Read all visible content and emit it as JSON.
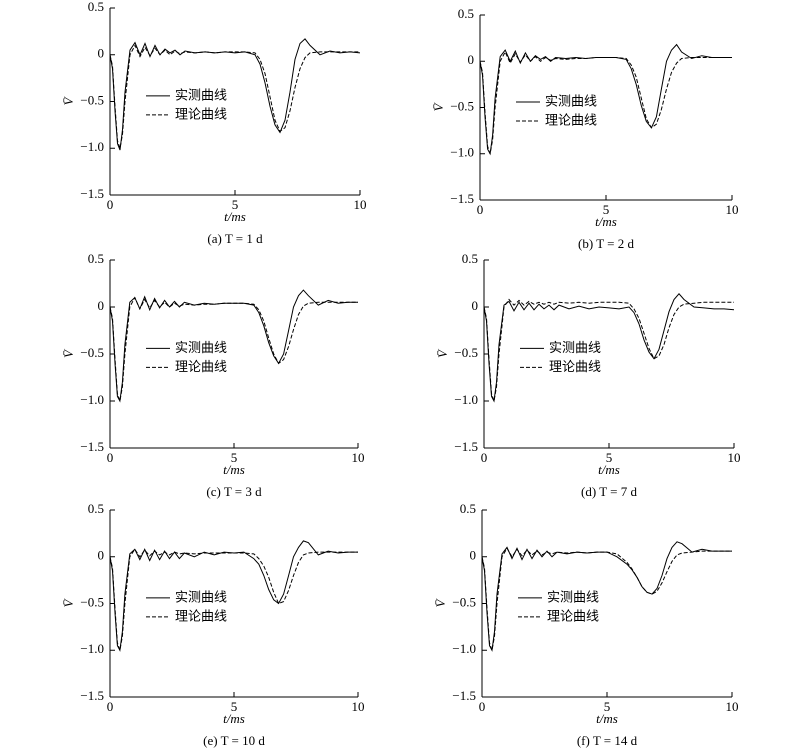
{
  "chart_data": [
    {
      "type": "line",
      "caption": "(a) T = 1 d",
      "x_label": "t/ms",
      "y_label": "V̄",
      "legend": "left",
      "xlim": [
        0,
        10
      ],
      "ylim": [
        -1.5,
        0.5
      ],
      "xticks": [
        0,
        5,
        10
      ],
      "yticks": [
        0.5,
        0,
        {
          "value": -0.5,
          "label": "−0.5"
        },
        {
          "value": -1,
          "label": "−1.0"
        },
        {
          "value": -1.5,
          "label": "−1.5"
        }
      ],
      "x": [
        0,
        0.1,
        0.2,
        0.3,
        0.4,
        0.5,
        0.6,
        0.8,
        1.0,
        1.2,
        1.4,
        1.6,
        1.8,
        2.0,
        2.2,
        2.4,
        2.6,
        2.8,
        3.0,
        3.4,
        3.8,
        4.2,
        4.6,
        5.0,
        5.4,
        5.8,
        6.0,
        6.2,
        6.4,
        6.6,
        6.8,
        7.0,
        7.2,
        7.4,
        7.6,
        7.8,
        8.0,
        8.4,
        8.8,
        9.2,
        9.6,
        10
      ],
      "series": [
        {
          "name": "实测曲线",
          "color": "#000000",
          "style": "solid",
          "values": [
            0,
            -0.15,
            -0.6,
            -0.95,
            -1.02,
            -0.8,
            -0.4,
            0.05,
            0.13,
            0.0,
            0.12,
            -0.02,
            0.1,
            0.0,
            0.06,
            0.02,
            0.05,
            0.0,
            0.04,
            0.02,
            0.03,
            0.02,
            0.03,
            0.02,
            0.03,
            0.0,
            -0.1,
            -0.3,
            -0.55,
            -0.75,
            -0.83,
            -0.7,
            -0.4,
            -0.05,
            0.12,
            0.17,
            0.1,
            0.0,
            0.04,
            0.02,
            0.03,
            0.02
          ]
        },
        {
          "name": "理论曲线",
          "color": "#000000",
          "style": "dashed",
          "values": [
            0,
            -0.12,
            -0.55,
            -0.92,
            -1.0,
            -0.85,
            -0.5,
            0.0,
            0.1,
            -0.02,
            0.08,
            -0.01,
            0.07,
            0.0,
            0.05,
            0.0,
            0.04,
            0.01,
            0.03,
            0.02,
            0.03,
            0.02,
            0.03,
            0.03,
            0.03,
            0.02,
            -0.05,
            -0.2,
            -0.45,
            -0.7,
            -0.82,
            -0.78,
            -0.6,
            -0.35,
            -0.15,
            -0.03,
            0.02,
            0.03,
            0.03,
            0.03,
            0.03,
            0.03
          ]
        }
      ]
    },
    {
      "type": "line",
      "caption": "(b) T = 2 d",
      "x_label": "t/ms",
      "y_label": "V̄",
      "legend": "left",
      "xlim": [
        0,
        10
      ],
      "ylim": [
        -1.5,
        0.5
      ],
      "xticks": [
        0,
        5,
        10
      ],
      "yticks": [
        0.5,
        0,
        {
          "value": -0.5,
          "label": "−0.5"
        },
        {
          "value": -1,
          "label": "−1.0"
        },
        {
          "value": -1.5,
          "label": "−1.5"
        }
      ],
      "x": [
        0,
        0.1,
        0.2,
        0.3,
        0.4,
        0.5,
        0.6,
        0.8,
        1.0,
        1.2,
        1.4,
        1.6,
        1.8,
        2.0,
        2.2,
        2.4,
        2.6,
        2.8,
        3.0,
        3.4,
        3.8,
        4.2,
        4.6,
        5.0,
        5.4,
        5.8,
        6.0,
        6.2,
        6.4,
        6.6,
        6.8,
        7.0,
        7.2,
        7.4,
        7.6,
        7.8,
        8.0,
        8.4,
        8.8,
        9.2,
        9.6,
        10
      ],
      "series": [
        {
          "name": "实测曲线",
          "color": "#000000",
          "style": "solid",
          "values": [
            0,
            -0.15,
            -0.6,
            -0.95,
            -1.0,
            -0.8,
            -0.4,
            0.05,
            0.12,
            0.0,
            0.11,
            -0.02,
            0.09,
            0.0,
            0.06,
            0.02,
            0.05,
            0.0,
            0.04,
            0.03,
            0.04,
            0.03,
            0.04,
            0.04,
            0.04,
            0.02,
            -0.08,
            -0.25,
            -0.48,
            -0.65,
            -0.72,
            -0.6,
            -0.3,
            0.0,
            0.12,
            0.18,
            0.1,
            0.03,
            0.06,
            0.04,
            0.04,
            0.04
          ]
        },
        {
          "name": "理论曲线",
          "color": "#000000",
          "style": "dashed",
          "values": [
            0,
            -0.12,
            -0.55,
            -0.92,
            -1.0,
            -0.85,
            -0.5,
            0.0,
            0.1,
            -0.02,
            0.08,
            -0.01,
            0.07,
            0.0,
            0.05,
            0.0,
            0.04,
            0.01,
            0.03,
            0.02,
            0.03,
            0.03,
            0.04,
            0.04,
            0.04,
            0.03,
            -0.04,
            -0.17,
            -0.4,
            -0.62,
            -0.72,
            -0.68,
            -0.52,
            -0.3,
            -0.12,
            -0.02,
            0.03,
            0.04,
            0.04,
            0.04,
            0.04,
            0.04
          ]
        }
      ]
    },
    {
      "type": "line",
      "caption": "(c) T = 3 d",
      "x_label": "t/ms",
      "y_label": "V̄",
      "legend": "left",
      "xlim": [
        0,
        10
      ],
      "ylim": [
        -1.5,
        0.5
      ],
      "xticks": [
        0,
        5,
        10
      ],
      "yticks": [
        0.5,
        0,
        {
          "value": -0.5,
          "label": "−0.5"
        },
        {
          "value": -1,
          "label": "−1.0"
        },
        {
          "value": -1.5,
          "label": "−1.5"
        }
      ],
      "x": [
        0,
        0.1,
        0.2,
        0.3,
        0.4,
        0.5,
        0.6,
        0.8,
        1.0,
        1.2,
        1.4,
        1.6,
        1.8,
        2.0,
        2.2,
        2.4,
        2.6,
        2.8,
        3.0,
        3.4,
        3.8,
        4.2,
        4.6,
        5.0,
        5.4,
        5.8,
        6.0,
        6.2,
        6.4,
        6.6,
        6.8,
        7.0,
        7.2,
        7.4,
        7.6,
        7.8,
        8.0,
        8.4,
        8.8,
        9.2,
        9.6,
        10
      ],
      "series": [
        {
          "name": "实测曲线",
          "color": "#000000",
          "style": "solid",
          "values": [
            0,
            -0.15,
            -0.6,
            -0.95,
            -1.0,
            -0.8,
            -0.4,
            0.05,
            0.1,
            -0.02,
            0.11,
            -0.03,
            0.09,
            -0.01,
            0.07,
            0.0,
            0.06,
            0.0,
            0.05,
            0.02,
            0.04,
            0.03,
            0.04,
            0.04,
            0.04,
            0.02,
            -0.06,
            -0.2,
            -0.38,
            -0.52,
            -0.6,
            -0.5,
            -0.25,
            0.0,
            0.12,
            0.18,
            0.12,
            0.02,
            0.07,
            0.04,
            0.05,
            0.05
          ]
        },
        {
          "name": "理论曲线",
          "color": "#000000",
          "style": "dashed",
          "values": [
            0,
            -0.12,
            -0.55,
            -0.92,
            -1.0,
            -0.85,
            -0.5,
            0.0,
            0.1,
            -0.02,
            0.08,
            -0.01,
            0.07,
            0.0,
            0.05,
            0.0,
            0.04,
            0.01,
            0.03,
            0.02,
            0.03,
            0.03,
            0.04,
            0.04,
            0.04,
            0.03,
            -0.03,
            -0.15,
            -0.33,
            -0.5,
            -0.6,
            -0.56,
            -0.42,
            -0.24,
            -0.08,
            0.01,
            0.04,
            0.05,
            0.05,
            0.05,
            0.05,
            0.05
          ]
        }
      ]
    },
    {
      "type": "line",
      "caption": "(d) T = 7 d",
      "x_label": "t/ms",
      "y_label": "V̄",
      "legend": "left",
      "xlim": [
        0,
        10
      ],
      "ylim": [
        -1.5,
        0.5
      ],
      "xticks": [
        0,
        5,
        10
      ],
      "yticks": [
        0.5,
        0,
        {
          "value": -0.5,
          "label": "−0.5"
        },
        {
          "value": -1,
          "label": "−1.0"
        },
        {
          "value": -1.5,
          "label": "−1.5"
        }
      ],
      "x": [
        0,
        0.1,
        0.2,
        0.3,
        0.4,
        0.5,
        0.6,
        0.8,
        1.0,
        1.2,
        1.4,
        1.6,
        1.8,
        2.0,
        2.2,
        2.4,
        2.6,
        2.8,
        3.0,
        3.4,
        3.8,
        4.2,
        4.6,
        5.0,
        5.4,
        5.8,
        6.0,
        6.2,
        6.4,
        6.6,
        6.8,
        7.0,
        7.2,
        7.4,
        7.6,
        7.8,
        8.0,
        8.4,
        8.8,
        9.2,
        9.6,
        10
      ],
      "series": [
        {
          "name": "实测曲线",
          "color": "#000000",
          "style": "solid",
          "values": [
            0,
            -0.15,
            -0.6,
            -0.95,
            -1.0,
            -0.8,
            -0.4,
            0.02,
            0.06,
            -0.04,
            0.05,
            -0.03,
            0.04,
            -0.03,
            0.03,
            -0.02,
            0.02,
            -0.03,
            0.02,
            -0.02,
            0.01,
            -0.02,
            0.0,
            -0.01,
            -0.02,
            0.0,
            -0.06,
            -0.18,
            -0.35,
            -0.48,
            -0.55,
            -0.45,
            -0.25,
            -0.05,
            0.08,
            0.14,
            0.08,
            0.0,
            -0.01,
            -0.02,
            -0.02,
            -0.03
          ]
        },
        {
          "name": "理论曲线",
          "color": "#000000",
          "style": "dashed",
          "values": [
            0,
            -0.12,
            -0.55,
            -0.92,
            -1.0,
            -0.85,
            -0.5,
            0.0,
            0.08,
            0.02,
            0.07,
            0.02,
            0.06,
            0.03,
            0.05,
            0.03,
            0.05,
            0.03,
            0.05,
            0.04,
            0.05,
            0.04,
            0.05,
            0.05,
            0.05,
            0.04,
            -0.02,
            -0.12,
            -0.28,
            -0.44,
            -0.55,
            -0.52,
            -0.4,
            -0.22,
            -0.08,
            0.0,
            0.03,
            0.04,
            0.05,
            0.05,
            0.05,
            0.05
          ]
        }
      ]
    },
    {
      "type": "line",
      "caption": "(e) T = 10 d",
      "x_label": "t/ms",
      "y_label": "V̄",
      "legend": "left",
      "xlim": [
        0,
        10
      ],
      "ylim": [
        -1.5,
        0.5
      ],
      "xticks": [
        0,
        5,
        10
      ],
      "yticks": [
        0.5,
        0,
        {
          "value": -0.5,
          "label": "−0.5"
        },
        {
          "value": -1,
          "label": "−1.0"
        },
        {
          "value": -1.5,
          "label": "−1.5"
        }
      ],
      "x": [
        0,
        0.1,
        0.2,
        0.3,
        0.4,
        0.5,
        0.6,
        0.8,
        1.0,
        1.2,
        1.4,
        1.6,
        1.8,
        2.0,
        2.2,
        2.4,
        2.6,
        2.8,
        3.0,
        3.4,
        3.8,
        4.2,
        4.6,
        5.0,
        5.4,
        5.8,
        6.0,
        6.2,
        6.4,
        6.6,
        6.8,
        7.0,
        7.2,
        7.4,
        7.6,
        7.8,
        8.0,
        8.4,
        8.8,
        9.2,
        9.6,
        10
      ],
      "series": [
        {
          "name": "实测曲线",
          "color": "#000000",
          "style": "solid",
          "values": [
            0,
            -0.15,
            -0.6,
            -0.95,
            -1.0,
            -0.8,
            -0.4,
            0.03,
            0.08,
            -0.03,
            0.08,
            -0.04,
            0.07,
            -0.03,
            0.06,
            -0.02,
            0.05,
            -0.02,
            0.04,
            0.0,
            0.05,
            0.02,
            0.05,
            0.04,
            0.05,
            -0.02,
            -0.08,
            -0.2,
            -0.35,
            -0.46,
            -0.5,
            -0.4,
            -0.2,
            0.0,
            0.1,
            0.17,
            0.15,
            0.02,
            0.06,
            0.04,
            0.05,
            0.05
          ]
        },
        {
          "name": "理论曲线",
          "color": "#000000",
          "style": "dashed",
          "values": [
            0,
            -0.12,
            -0.55,
            -0.92,
            -1.0,
            -0.85,
            -0.5,
            0.0,
            0.08,
            0.0,
            0.07,
            0.01,
            0.06,
            0.02,
            0.05,
            0.02,
            0.05,
            0.03,
            0.04,
            0.03,
            0.04,
            0.04,
            0.04,
            0.04,
            0.04,
            0.03,
            -0.02,
            -0.1,
            -0.22,
            -0.38,
            -0.5,
            -0.48,
            -0.36,
            -0.2,
            -0.06,
            0.02,
            0.04,
            0.05,
            0.05,
            0.05,
            0.05,
            0.05
          ]
        }
      ]
    },
    {
      "type": "line",
      "caption": "(f) T = 14 d",
      "x_label": "t/ms",
      "y_label": "V̄",
      "legend": "left",
      "xlim": [
        0,
        10
      ],
      "ylim": [
        -1.5,
        0.5
      ],
      "xticks": [
        0,
        5,
        10
      ],
      "yticks": [
        0.5,
        0,
        {
          "value": -0.5,
          "label": "−0.5"
        },
        {
          "value": -1,
          "label": "−1.0"
        },
        {
          "value": -1.5,
          "label": "−1.5"
        }
      ],
      "x": [
        0,
        0.1,
        0.2,
        0.3,
        0.4,
        0.5,
        0.6,
        0.8,
        1.0,
        1.2,
        1.4,
        1.6,
        1.8,
        2.0,
        2.2,
        2.4,
        2.6,
        2.8,
        3.0,
        3.4,
        3.8,
        4.2,
        4.6,
        5.0,
        5.4,
        5.8,
        6.0,
        6.2,
        6.4,
        6.6,
        6.8,
        7.0,
        7.2,
        7.4,
        7.6,
        7.8,
        8.0,
        8.4,
        8.8,
        9.2,
        9.6,
        10
      ],
      "series": [
        {
          "name": "实测曲线",
          "color": "#000000",
          "style": "solid",
          "values": [
            0,
            -0.15,
            -0.6,
            -0.95,
            -1.0,
            -0.8,
            -0.4,
            0.03,
            0.1,
            -0.02,
            0.09,
            -0.03,
            0.08,
            -0.02,
            0.07,
            0.0,
            0.06,
            0.0,
            0.05,
            0.03,
            0.05,
            0.04,
            0.05,
            0.05,
            0.0,
            -0.08,
            -0.14,
            -0.22,
            -0.32,
            -0.38,
            -0.4,
            -0.34,
            -0.2,
            -0.02,
            0.1,
            0.16,
            0.14,
            0.05,
            0.08,
            0.06,
            0.06,
            0.06
          ]
        },
        {
          "name": "理论曲线",
          "color": "#000000",
          "style": "dashed",
          "values": [
            0,
            -0.12,
            -0.55,
            -0.92,
            -1.0,
            -0.85,
            -0.5,
            0.0,
            0.09,
            0.0,
            0.08,
            0.01,
            0.07,
            0.02,
            0.06,
            0.02,
            0.05,
            0.03,
            0.05,
            0.04,
            0.05,
            0.04,
            0.05,
            0.05,
            0.03,
            -0.06,
            -0.13,
            -0.22,
            -0.32,
            -0.38,
            -0.4,
            -0.37,
            -0.28,
            -0.16,
            -0.05,
            0.02,
            0.04,
            0.05,
            0.06,
            0.06,
            0.06,
            0.06
          ]
        }
      ]
    }
  ]
}
